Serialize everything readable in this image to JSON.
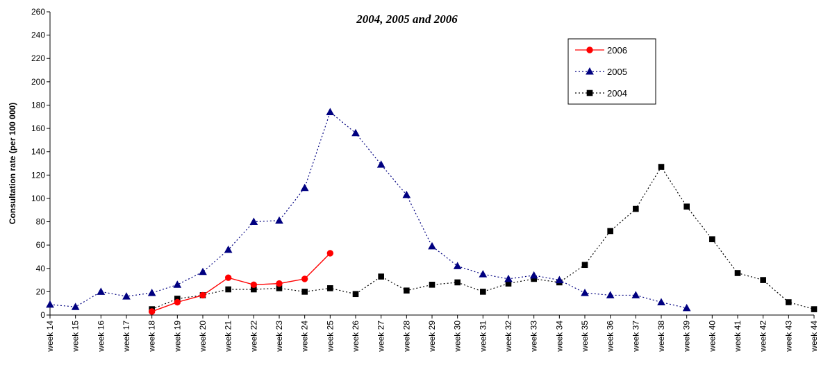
{
  "chart_data": {
    "type": "line",
    "title": "2004, 2005 and 2006",
    "xlabel": "",
    "ylabel": "Consultation rate (per 100 000)",
    "ylim": [
      0,
      260
    ],
    "yticks": [
      0,
      20,
      40,
      60,
      80,
      100,
      120,
      140,
      160,
      180,
      200,
      220,
      240,
      260
    ],
    "grid": false,
    "legend_position": "top-right",
    "categories": [
      "week 14",
      "week 15",
      "week 16",
      "week 17",
      "week 18",
      "week 19",
      "week 20",
      "week 21",
      "week 22",
      "week 23",
      "week 24",
      "week 25",
      "week 26",
      "week 27",
      "week 28",
      "week 29",
      "week 30",
      "week 31",
      "week 32",
      "week 33",
      "week 34",
      "week 35",
      "week 36",
      "week 37",
      "week 38",
      "week 39",
      "week 40",
      "week 41",
      "week 42",
      "week 43",
      "week 44"
    ],
    "series": [
      {
        "name": "2006",
        "color": "#ff0000",
        "marker": "circle",
        "line_style": "solid",
        "values": [
          null,
          null,
          null,
          null,
          3,
          11,
          17,
          32,
          26,
          27,
          31,
          53,
          null,
          null,
          null,
          null,
          null,
          null,
          null,
          null,
          null,
          null,
          null,
          null,
          null,
          null,
          null,
          null,
          null,
          null,
          null
        ]
      },
      {
        "name": "2005",
        "color": "#000080",
        "marker": "triangle",
        "line_style": "dotted",
        "values": [
          9,
          7,
          20,
          16,
          19,
          26,
          37,
          56,
          80,
          81,
          109,
          174,
          156,
          129,
          103,
          59,
          42,
          35,
          31,
          34,
          30,
          19,
          17,
          17,
          11,
          6,
          null,
          null,
          null,
          null,
          null
        ]
      },
      {
        "name": "2004",
        "color": "#000000",
        "marker": "square",
        "line_style": "dotted",
        "values": [
          null,
          null,
          null,
          null,
          5,
          14,
          17,
          22,
          22,
          23,
          20,
          23,
          18,
          33,
          21,
          26,
          28,
          20,
          27,
          31,
          28,
          43,
          72,
          91,
          127,
          93,
          65,
          36,
          30,
          11,
          5
        ]
      }
    ]
  }
}
